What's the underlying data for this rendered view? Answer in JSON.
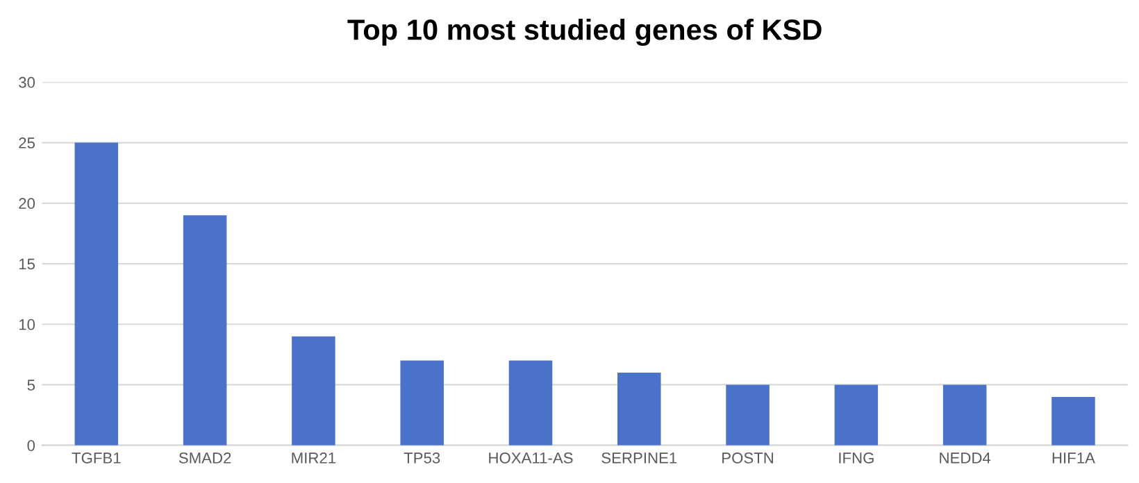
{
  "chart_data": {
    "type": "bar",
    "title": "Top 10 most studied genes of KSD",
    "categories": [
      "TGFB1",
      "SMAD2",
      "MIR21",
      "TP53",
      "HOXA11-AS",
      "SERPINE1",
      "POSTN",
      "IFNG",
      "NEDD4",
      "HIF1A"
    ],
    "values": [
      25,
      19,
      9,
      7,
      7,
      6,
      5,
      5,
      5,
      4
    ],
    "color": "#4a72c8",
    "ylim": [
      0,
      30
    ],
    "yticks": [
      0,
      5,
      10,
      15,
      20,
      25,
      30
    ],
    "grid": "y",
    "legend": false
  }
}
